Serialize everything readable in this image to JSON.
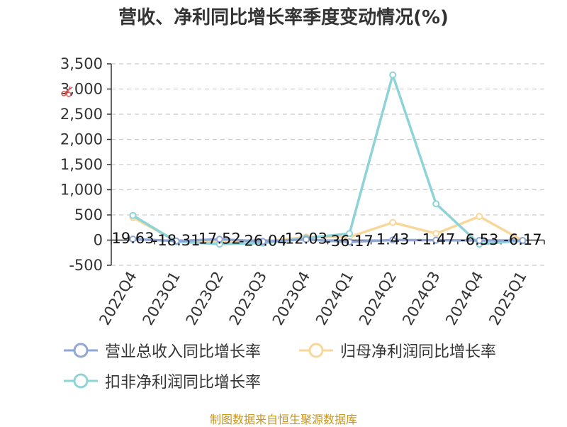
{
  "title": "营收、净利同比增长率季度变动情况(%)",
  "source": "制图数据来自恒生聚源数据库",
  "toolbox": {
    "icon": "scissors-icon"
  },
  "chart_data": {
    "type": "line",
    "title": "营收、净利同比增长率季度变动情况(%)",
    "categories": [
      "2022Q4",
      "2023Q1",
      "2023Q2",
      "2023Q3",
      "2023Q4",
      "2024Q1",
      "2024Q2",
      "2024Q3",
      "2024Q4",
      "2025Q1"
    ],
    "yticks": [
      "3,500",
      "3,000",
      "2,500",
      "2,000",
      "1,500",
      "1,000",
      "500",
      "0",
      "-500"
    ],
    "ylim": [
      -500,
      3500
    ],
    "grid": true,
    "legend_position": "bottom",
    "series": [
      {
        "name": "营业总收入同比增长率",
        "color": "#8fa7d6",
        "values": [
          19.63,
          -18.31,
          17.52,
          -26.04,
          12.03,
          -36.17,
          1.43,
          -1.47,
          -6.53,
          -6.17
        ],
        "labels": [
          "19.63",
          "-18.31",
          "17.52",
          "-26.04",
          "12.03",
          "-36.17",
          "1.43",
          "-1.47",
          "-6.53",
          "-6.17"
        ]
      },
      {
        "name": "归母净利润同比增长率",
        "color": "#f8d79a",
        "values": [
          450,
          -20,
          -50,
          -30,
          60,
          60,
          350,
          130,
          470,
          -10
        ]
      },
      {
        "name": "扣非净利润同比增长率",
        "color": "#8dd3d8",
        "values": [
          490,
          -30,
          -80,
          -60,
          40,
          130,
          3280,
          720,
          -80,
          -10
        ]
      }
    ]
  }
}
